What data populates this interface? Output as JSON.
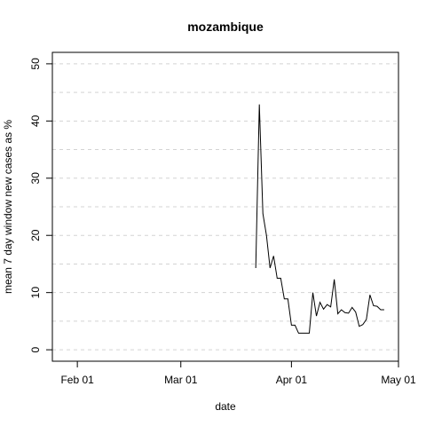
{
  "chart_data": {
    "type": "line",
    "title": "mozambique",
    "xlabel": "date",
    "ylabel": "mean  7  day window new cases as %",
    "x_tick_labels": [
      "Feb 01",
      "Mar 01",
      "Apr 01",
      "May 01"
    ],
    "x_ticks": [
      "2020-02-01",
      "2020-03-01",
      "2020-04-01",
      "2020-05-01"
    ],
    "y_ticks": [
      0,
      10,
      20,
      30,
      40,
      50
    ],
    "y_tick_labels": [
      "0",
      "10",
      "20",
      "30",
      "40",
      "50"
    ],
    "xlim": [
      "2020-01-25",
      "2020-05-01"
    ],
    "ylim": [
      -2,
      52
    ],
    "y_gridlines": [
      0,
      5,
      10,
      15,
      20,
      25,
      30,
      35,
      40,
      45,
      50
    ],
    "grid": true,
    "series": [
      {
        "color": "#000000",
        "points": [
          [
            "2020-03-22",
            14.3
          ],
          [
            "2020-03-23",
            42.9
          ],
          [
            "2020-03-24",
            23.8
          ],
          [
            "2020-03-25",
            20.0
          ],
          [
            "2020-03-26",
            14.3
          ],
          [
            "2020-03-27",
            16.4
          ],
          [
            "2020-03-28",
            12.5
          ],
          [
            "2020-03-29",
            12.5
          ],
          [
            "2020-03-30",
            8.9
          ],
          [
            "2020-03-31",
            8.9
          ],
          [
            "2020-04-01",
            4.3
          ],
          [
            "2020-04-02",
            4.3
          ],
          [
            "2020-04-03",
            2.9
          ],
          [
            "2020-04-04",
            2.9
          ],
          [
            "2020-04-05",
            2.9
          ],
          [
            "2020-04-06",
            2.9
          ],
          [
            "2020-04-07",
            10.0
          ],
          [
            "2020-04-08",
            5.9
          ],
          [
            "2020-04-09",
            8.3
          ],
          [
            "2020-04-10",
            7.1
          ],
          [
            "2020-04-11",
            7.9
          ],
          [
            "2020-04-12",
            7.5
          ],
          [
            "2020-04-13",
            12.3
          ],
          [
            "2020-04-14",
            6.3
          ],
          [
            "2020-04-15",
            7.0
          ],
          [
            "2020-04-16",
            6.5
          ],
          [
            "2020-04-17",
            6.4
          ],
          [
            "2020-04-18",
            7.4
          ],
          [
            "2020-04-19",
            6.6
          ],
          [
            "2020-04-20",
            4.1
          ],
          [
            "2020-04-21",
            4.4
          ],
          [
            "2020-04-22",
            5.3
          ],
          [
            "2020-04-23",
            9.6
          ],
          [
            "2020-04-24",
            7.7
          ],
          [
            "2020-04-25",
            7.6
          ],
          [
            "2020-04-26",
            7.0
          ],
          [
            "2020-04-27",
            7.0
          ]
        ]
      }
    ]
  }
}
